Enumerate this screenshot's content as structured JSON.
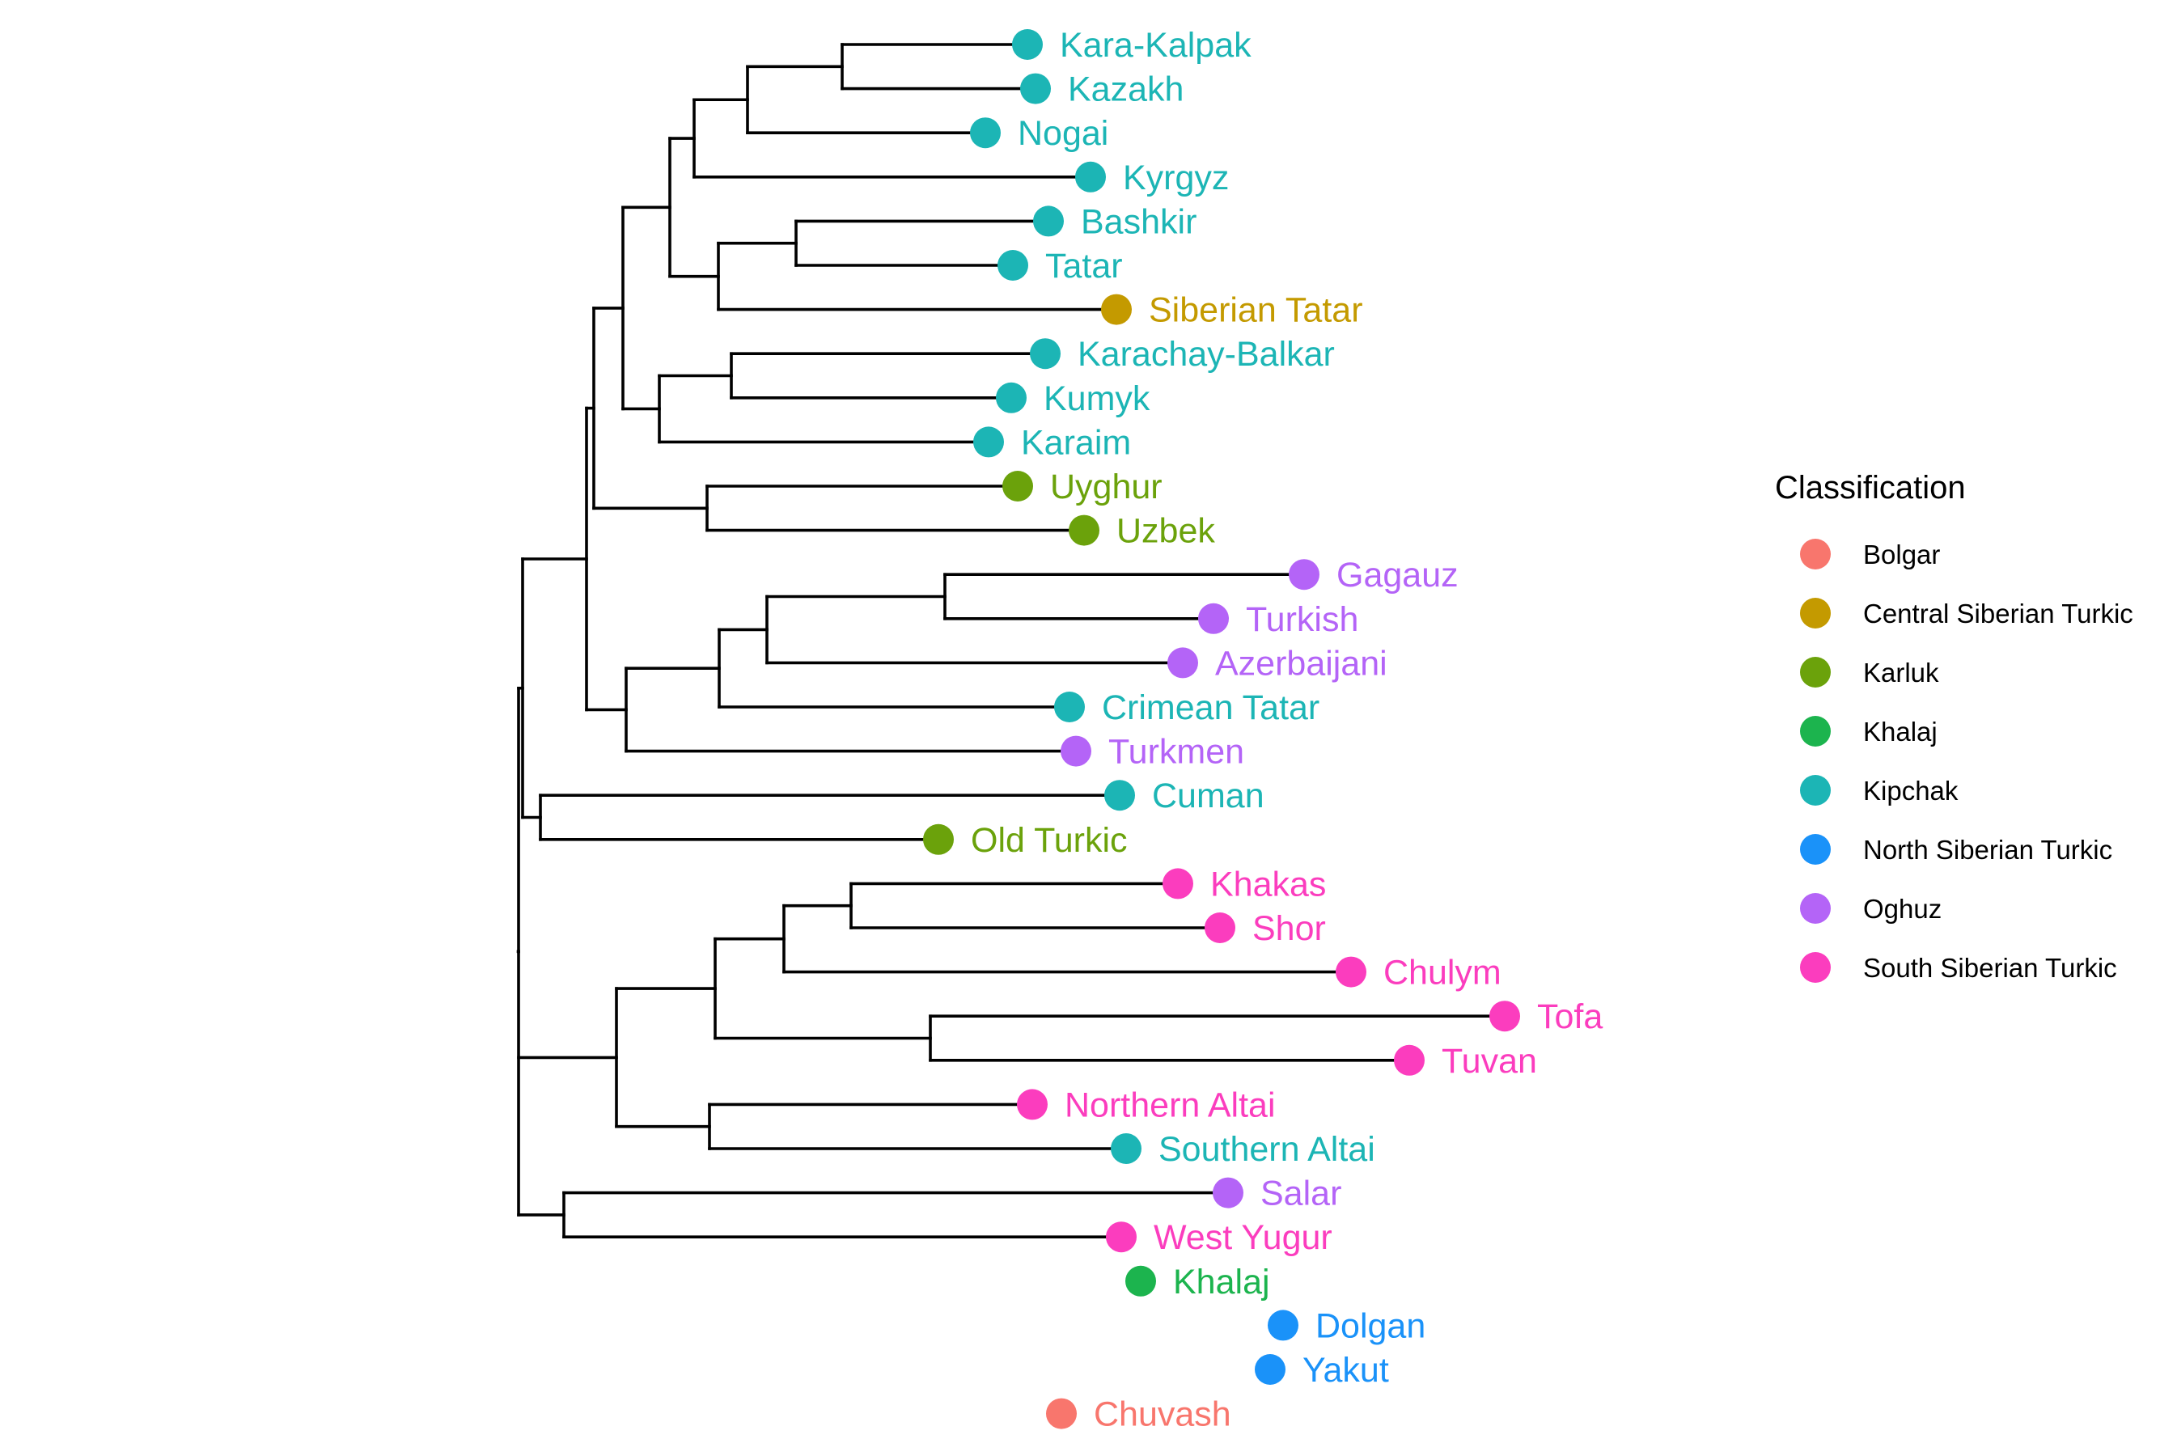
{
  "legend": {
    "title": "Classification",
    "items": [
      {
        "label": "Bolgar",
        "color": "#F8766D"
      },
      {
        "label": "Central Siberian Turkic",
        "color": "#C49A00"
      },
      {
        "label": "Karluk",
        "color": "#6BA20B"
      },
      {
        "label": "Khalaj",
        "color": "#1CB44E"
      },
      {
        "label": "Kipchak",
        "color": "#1CB5B5"
      },
      {
        "label": "North Siberian Turkic",
        "color": "#1A92F9"
      },
      {
        "label": "Oghuz",
        "color": "#B464F7"
      },
      {
        "label": "South Siberian Turkic",
        "color": "#FB3DBE"
      }
    ]
  },
  "tips": [
    {
      "name": "Kara-Kalpak",
      "group": "Kipchak"
    },
    {
      "name": "Kazakh",
      "group": "Kipchak"
    },
    {
      "name": "Nogai",
      "group": "Kipchak"
    },
    {
      "name": "Kyrgyz",
      "group": "Kipchak"
    },
    {
      "name": "Bashkir",
      "group": "Kipchak"
    },
    {
      "name": "Tatar",
      "group": "Kipchak"
    },
    {
      "name": "Siberian Tatar",
      "group": "Central Siberian Turkic"
    },
    {
      "name": "Karachay-Balkar",
      "group": "Kipchak"
    },
    {
      "name": "Kumyk",
      "group": "Kipchak"
    },
    {
      "name": "Karaim",
      "group": "Kipchak"
    },
    {
      "name": "Uyghur",
      "group": "Karluk"
    },
    {
      "name": "Uzbek",
      "group": "Karluk"
    },
    {
      "name": "Gagauz",
      "group": "Oghuz"
    },
    {
      "name": "Turkish",
      "group": "Oghuz"
    },
    {
      "name": "Azerbaijani",
      "group": "Oghuz"
    },
    {
      "name": "Crimean Tatar",
      "group": "Kipchak"
    },
    {
      "name": "Turkmen",
      "group": "Oghuz"
    },
    {
      "name": "Cuman",
      "group": "Kipchak"
    },
    {
      "name": "Old Turkic",
      "group": "Karluk"
    },
    {
      "name": "Khakas",
      "group": "South Siberian Turkic"
    },
    {
      "name": "Shor",
      "group": "South Siberian Turkic"
    },
    {
      "name": "Chulym",
      "group": "South Siberian Turkic"
    },
    {
      "name": "Tofa",
      "group": "South Siberian Turkic"
    },
    {
      "name": "Tuvan",
      "group": "South Siberian Turkic"
    },
    {
      "name": "Northern Altai",
      "group": "South Siberian Turkic"
    },
    {
      "name": "Southern Altai",
      "group": "Kipchak"
    },
    {
      "name": "Salar",
      "group": "Oghuz"
    },
    {
      "name": "West Yugur",
      "group": "South Siberian Turkic"
    },
    {
      "name": "Khalaj",
      "group": "Khalaj"
    },
    {
      "name": "Dolgan",
      "group": "North Siberian Turkic"
    },
    {
      "name": "Yakut",
      "group": "North Siberian Turkic"
    },
    {
      "name": "Chuvash",
      "group": "Bolgar"
    }
  ],
  "tree": [
    "((((((((((Kara-Kalpak,Kazakh),Nogai),Kyrgyz),((Bashkir,Tatar),Siberian Tatar)),((Karachay-Balkar,Kumyk),Karaim)),(Uyghur,Uzbek)),((((Gagauz,Turkish),Azerbaijani),Crimean Tatar),Turkmen)),(Cuman,Old Turkic)),((((Khakas,Shor),Chulym),(Tofa,Tuvan)),(Northern Altai,Southern Altai)),(Salar,West Yugur))),Khalaj),(Dolgan,Yakut)),Chuvash)"
  ]
}
